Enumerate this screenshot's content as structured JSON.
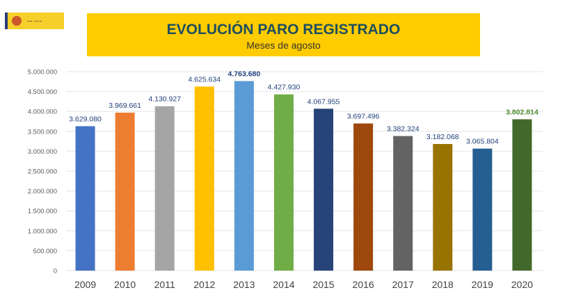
{
  "header": {
    "logo_text": "GOBIERNO DE ESPAÑA · MINISTERIO DE TRABAJO Y ECONOMÍA SOCIAL",
    "title": "EVOLUCIÓN PARO REGISTRADO",
    "subtitle": "Meses de agosto"
  },
  "chart_data": {
    "type": "bar",
    "title": "EVOLUCIÓN PARO REGISTRADO",
    "subtitle": "Meses de agosto",
    "xlabel": "",
    "ylabel": "",
    "ylim": [
      0,
      5000000
    ],
    "grid": true,
    "yticks": [
      "0",
      "500.000",
      "1.000.000",
      "1.500.000",
      "2.000.000",
      "2.500.000",
      "3.000.000",
      "3.500.000",
      "4.000.000",
      "4.500.000",
      "5.000.000"
    ],
    "categories": [
      "2009",
      "2010",
      "2011",
      "2012",
      "2013",
      "2014",
      "2015",
      "2016",
      "2017",
      "2018",
      "2019",
      "2020"
    ],
    "values": [
      3629080,
      3969661,
      4130927,
      4625634,
      4763680,
      4427930,
      4067955,
      3697496,
      3382324,
      3182068,
      3065804,
      3802814
    ],
    "data_labels": [
      "3.629.080",
      "3.969.661",
      "4.130.927",
      "4.625.634",
      "4.763.680",
      "4.427.930",
      "4.067.955",
      "3.697.496",
      "3.382.324",
      "3.182.068",
      "3.065.804",
      "3.802.814"
    ],
    "colors": [
      "#4472c4",
      "#ed7d31",
      "#a5a5a5",
      "#ffc000",
      "#5b9bd5",
      "#70ad47",
      "#264478",
      "#9e480e",
      "#636363",
      "#997300",
      "#255e91",
      "#43682b"
    ],
    "label_color": "#1f3f7a",
    "highlight_label_colors": {
      "2013": "#1f3f7a",
      "2020": "#4e8a2e"
    }
  }
}
